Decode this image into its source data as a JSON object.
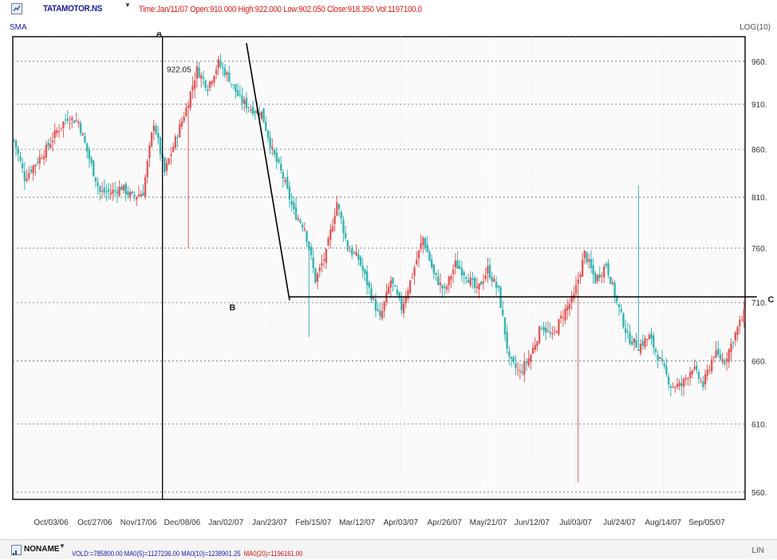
{
  "header": {
    "symbol": "TATAMOTOR.NS",
    "ohlc_text": "Time:Jan/11/07  Open:910.000  High:922.000  Low:902.050  Close:918.350  Vol:1197100.0",
    "indicator": "SMA",
    "scale_mode": "LOG(10)"
  },
  "footer": {
    "panel_name": "NONAME",
    "stats_blue": "VOLD:=785800.00   MA0(5)=1127236.00   MA0(10)=1238901.25",
    "stats_red": "MA0(20)=1196161.00",
    "scale_mode": "LIN"
  },
  "colors": {
    "up": "#e05a5a",
    "down": "#36b3b3",
    "grid": "#555555",
    "line": "#000000"
  },
  "chart_data": {
    "type": "candlestick",
    "scale": "log",
    "ylim": [
      555,
      990
    ],
    "y_ticks": [
      "960.",
      "910.",
      "860.",
      "810.",
      "760.",
      "710.",
      "660.",
      "610.",
      "560."
    ],
    "x_ticks": [
      "Oct/03/06",
      "Oct/27/06",
      "Nov/17/06",
      "Dec/08/06",
      "Jan/02/07",
      "Jan/23/07",
      "Feb/15/07",
      "Mar/12/07",
      "Apr/03/07",
      "Apr/26/07",
      "May/21/07",
      "Jun/12/07",
      "Jul/03/07",
      "Jul/24/07",
      "Aug/14/07",
      "Sep/05/07"
    ],
    "anchors": [
      [
        0,
        870
      ],
      [
        5,
        830
      ],
      [
        10,
        845
      ],
      [
        15,
        860
      ],
      [
        20,
        880
      ],
      [
        25,
        895
      ],
      [
        30,
        890
      ],
      [
        35,
        850
      ],
      [
        40,
        815
      ],
      [
        45,
        815
      ],
      [
        50,
        820
      ],
      [
        55,
        810
      ],
      [
        60,
        815
      ],
      [
        65,
        890
      ],
      [
        70,
        835
      ],
      [
        75,
        870
      ],
      [
        80,
        905
      ],
      [
        85,
        950
      ],
      [
        90,
        930
      ],
      [
        95,
        958
      ],
      [
        100,
        940
      ],
      [
        105,
        915
      ],
      [
        110,
        905
      ],
      [
        115,
        900
      ],
      [
        120,
        858
      ],
      [
        125,
        830
      ],
      [
        130,
        795
      ],
      [
        135,
        780
      ],
      [
        140,
        730
      ],
      [
        145,
        755
      ],
      [
        150,
        805
      ],
      [
        155,
        760
      ],
      [
        160,
        750
      ],
      [
        165,
        722
      ],
      [
        170,
        695
      ],
      [
        175,
        730
      ],
      [
        180,
        705
      ],
      [
        185,
        735
      ],
      [
        190,
        770
      ],
      [
        195,
        735
      ],
      [
        200,
        720
      ],
      [
        205,
        745
      ],
      [
        210,
        735
      ],
      [
        215,
        720
      ],
      [
        220,
        740
      ],
      [
        225,
        720
      ],
      [
        230,
        660
      ],
      [
        235,
        650
      ],
      [
        240,
        665
      ],
      [
        245,
        690
      ],
      [
        250,
        680
      ],
      [
        255,
        700
      ],
      [
        260,
        715
      ],
      [
        265,
        755
      ],
      [
        270,
        730
      ],
      [
        275,
        745
      ],
      [
        280,
        710
      ],
      [
        285,
        680
      ],
      [
        290,
        672
      ],
      [
        295,
        680
      ],
      [
        300,
        660
      ],
      [
        305,
        640
      ],
      [
        310,
        640
      ],
      [
        315,
        655
      ],
      [
        320,
        640
      ],
      [
        325,
        666
      ],
      [
        330,
        660
      ],
      [
        335,
        683
      ],
      [
        339,
        700
      ]
    ],
    "special_ranges": [
      [
        262,
        567,
        585
      ]
    ],
    "trendlines": [
      {
        "from": [
          108,
          982
        ],
        "to": [
          128,
          712
        ]
      },
      {
        "from": [
          128,
          715
        ],
        "to": [
          345,
          715
        ]
      }
    ],
    "cursor_x_index": 69,
    "annotations": [
      {
        "text": "A",
        "x": 66,
        "y": 990
      },
      {
        "text": "B",
        "x": 100,
        "y": 703
      },
      {
        "text": "C",
        "x": 350,
        "y": 710
      },
      {
        "text": "922.05",
        "x": 71,
        "y": 947
      }
    ]
  }
}
